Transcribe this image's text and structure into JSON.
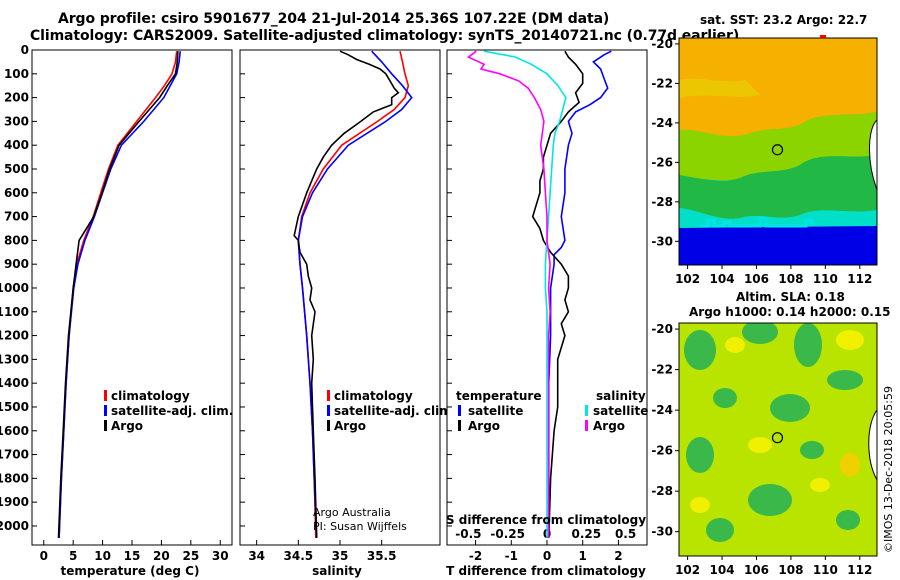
{
  "title": {
    "line1": "Argo profile: csiro 5901677_204 21-Jul-2014 25.36S 107.22E (DM data)",
    "line2": "Climatology: CARS2009. Satellite-adjusted climatology: synTS_20140721.nc (0.77d earlier)"
  },
  "panels_header": {
    "sst": "sat. SST: 23.2  Argo: 22.7",
    "sla_line1": "Altim. SLA: 0.18",
    "sla_line2": "Argo h1000: 0.14 h2000: 0.15"
  },
  "credit": {
    "line1": "Argo Australia",
    "line2": "PI: Susan Wijffels",
    "stamp": "©IMOS 13-Dec-2018 20:05:59"
  },
  "colors": {
    "climatology": "#ff0000",
    "satellite": "#0000ff",
    "argo": "#000000",
    "sat_salinity": "#00e5e5",
    "argo_salinity": "#ff00ff"
  },
  "chart_data": [
    {
      "type": "line",
      "name": "temperature-profile",
      "xlabel": "temperature (deg C)",
      "ylabel": "",
      "xlim": [
        -2,
        32
      ],
      "ylim": [
        2080,
        0
      ],
      "xticks": [
        0,
        5,
        10,
        15,
        20,
        25,
        30
      ],
      "yticks": [
        0,
        100,
        200,
        300,
        400,
        500,
        600,
        700,
        800,
        900,
        1000,
        1100,
        1200,
        1300,
        1400,
        1500,
        1600,
        1700,
        1800,
        1900,
        2000
      ],
      "legend": [
        "climatology",
        "satellite-adj. clim.",
        "Argo"
      ],
      "series": [
        {
          "name": "climatology",
          "depth": [
            5,
            50,
            100,
            150,
            200,
            300,
            400,
            500,
            600,
            700,
            800,
            900,
            1000,
            1200,
            1400,
            1600,
            1800,
            2050
          ],
          "values": [
            22.6,
            22.4,
            21.8,
            20.5,
            19.0,
            15.8,
            12.6,
            11.0,
            9.7,
            8.4,
            6.8,
            5.6,
            5.0,
            4.3,
            3.8,
            3.4,
            3.0,
            2.6
          ]
        },
        {
          "name": "satellite-adj. clim.",
          "depth": [
            5,
            50,
            100,
            150,
            200,
            300,
            400,
            500,
            600,
            700,
            800,
            900,
            1000,
            1200,
            1400,
            1600,
            1800,
            2050
          ],
          "values": [
            23.2,
            23.0,
            22.6,
            21.5,
            20.4,
            17.0,
            13.2,
            11.4,
            10.0,
            8.6,
            7.0,
            5.8,
            5.1,
            4.3,
            3.8,
            3.4,
            3.0,
            2.6
          ]
        },
        {
          "name": "Argo",
          "depth": [
            5,
            50,
            100,
            150,
            200,
            300,
            400,
            500,
            600,
            700,
            800,
            900,
            1000,
            1200,
            1400,
            1600,
            1800,
            2050
          ],
          "values": [
            22.8,
            22.7,
            22.4,
            21.0,
            19.7,
            16.2,
            12.8,
            11.2,
            9.9,
            8.5,
            6.0,
            5.5,
            5.0,
            4.2,
            3.7,
            3.3,
            2.9,
            2.5
          ]
        }
      ]
    },
    {
      "type": "line",
      "name": "salinity-profile",
      "xlabel": "salinity",
      "xlim": [
        33.8,
        36.2
      ],
      "ylim": [
        2080,
        0
      ],
      "xticks": [
        34,
        34.5,
        35,
        35.5
      ],
      "legend": [
        "climatology",
        "satellite-adj. clim.",
        "Argo"
      ],
      "series": [
        {
          "name": "climatology",
          "depth": [
            5,
            50,
            100,
            150,
            200,
            250,
            300,
            400,
            500,
            600,
            700,
            800,
            900,
            1000,
            1200,
            1400,
            1600,
            1800,
            2050
          ],
          "values": [
            35.72,
            35.75,
            35.78,
            35.82,
            35.78,
            35.65,
            35.45,
            35.02,
            34.8,
            34.64,
            34.54,
            34.5,
            34.52,
            34.55,
            34.6,
            34.64,
            34.67,
            34.69,
            34.71
          ]
        },
        {
          "name": "satellite-adj. clim.",
          "depth": [
            5,
            50,
            100,
            150,
            200,
            250,
            300,
            400,
            500,
            600,
            700,
            800,
            900,
            1000,
            1200,
            1400,
            1600,
            1800,
            2050
          ],
          "values": [
            35.38,
            35.5,
            35.62,
            35.75,
            35.86,
            35.74,
            35.55,
            35.1,
            34.85,
            34.67,
            34.55,
            34.5,
            34.52,
            34.55,
            34.6,
            34.64,
            34.67,
            34.69,
            34.72
          ]
        },
        {
          "name": "Argo",
          "depth": [
            5,
            20,
            40,
            60,
            80,
            100,
            130,
            160,
            180,
            200,
            230,
            260,
            300,
            350,
            400,
            450,
            500,
            600,
            700,
            780,
            800,
            850,
            900,
            950,
            1000,
            1050,
            1100,
            1200,
            1300,
            1400,
            1600,
            1800,
            2050
          ],
          "values": [
            35.0,
            35.1,
            35.2,
            35.35,
            35.48,
            35.55,
            35.6,
            35.65,
            35.7,
            35.62,
            35.62,
            35.4,
            35.25,
            35.05,
            34.9,
            34.8,
            34.72,
            34.6,
            34.5,
            34.45,
            34.5,
            34.52,
            34.6,
            34.62,
            34.66,
            34.64,
            34.7,
            34.66,
            34.68,
            34.66,
            34.68,
            34.7,
            34.72
          ]
        }
      ]
    },
    {
      "type": "line",
      "name": "difference-profile",
      "xlabel": "T difference from climatology",
      "xlabel_top": "S difference from climatology",
      "xlim": [
        -2.8,
        2.8
      ],
      "ylim": [
        2080,
        0
      ],
      "xticks": [
        -2,
        -1,
        0,
        1,
        2
      ],
      "xticks_s": [
        -0.5,
        -0.25,
        0,
        0.25,
        0.5
      ],
      "legend_left_title": "temperature",
      "legend_right_title": "salinity",
      "legend_left": [
        "satellite",
        "Argo"
      ],
      "legend_right": [
        "satellite",
        "Argo"
      ],
      "series": [
        {
          "name": "T satellite",
          "depth": [
            5,
            20,
            50,
            80,
            120,
            160,
            200,
            230,
            260,
            300,
            350,
            400,
            500,
            600,
            700,
            800,
            830,
            860,
            900,
            1000,
            1200,
            1400,
            1600,
            1800,
            2050
          ],
          "values": [
            1.8,
            1.6,
            1.3,
            1.5,
            1.6,
            1.7,
            1.5,
            1.2,
            0.8,
            0.6,
            0.7,
            0.6,
            0.5,
            0.5,
            0.4,
            0.5,
            0.4,
            0.2,
            0.2,
            0.1,
            0.1,
            0.05,
            0.05,
            0.05,
            0.05
          ]
        },
        {
          "name": "T Argo",
          "depth": [
            5,
            30,
            60,
            100,
            140,
            180,
            220,
            260,
            300,
            350,
            400,
            450,
            500,
            550,
            600,
            650,
            700,
            750,
            800,
            850,
            900,
            950,
            1000,
            1050,
            1100,
            1150,
            1200,
            1300,
            1400,
            1500,
            1600,
            1800,
            2050
          ],
          "values": [
            0.5,
            0.6,
            0.8,
            1.0,
            1.0,
            0.8,
            0.9,
            0.6,
            0.4,
            0.1,
            0.0,
            -0.1,
            -0.1,
            -0.2,
            -0.2,
            -0.3,
            -0.4,
            -0.2,
            -0.1,
            0.1,
            0.4,
            0.6,
            0.6,
            0.5,
            0.6,
            0.4,
            0.5,
            0.3,
            0.3,
            0.3,
            0.2,
            0.1,
            0.05
          ]
        },
        {
          "name": "S satellite",
          "depth": [
            5,
            30,
            60,
            100,
            150,
            200,
            250,
            300,
            350,
            400,
            500,
            600,
            700,
            800,
            900,
            1000,
            1100,
            1200,
            1400,
            1600,
            1800,
            2050
          ],
          "values": [
            -0.4,
            -0.2,
            -0.1,
            0.0,
            0.07,
            0.12,
            0.1,
            0.08,
            0.05,
            0.04,
            0.03,
            0.02,
            0.01,
            0.0,
            -0.01,
            -0.01,
            0.0,
            0.0,
            0.0,
            0.0,
            0.0,
            0.0
          ]
        },
        {
          "name": "S Argo",
          "depth": [
            5,
            30,
            60,
            80,
            100,
            130,
            160,
            200,
            250,
            300,
            350,
            400,
            450,
            500,
            600,
            700,
            800,
            900,
            1000,
            1100,
            1200,
            1400,
            1600,
            1800,
            2050
          ],
          "values": [
            -0.45,
            -0.5,
            -0.4,
            -0.42,
            -0.3,
            -0.18,
            -0.12,
            -0.08,
            -0.04,
            -0.02,
            -0.03,
            -0.04,
            -0.03,
            -0.02,
            -0.01,
            0.0,
            0.0,
            0.02,
            0.01,
            0.02,
            0.01,
            0.01,
            0.01,
            0.01,
            0.01
          ]
        }
      ]
    },
    {
      "type": "heatmap",
      "name": "sst-map",
      "title": "sat. SST: 23.2  Argo: 22.7",
      "xlim": [
        101.5,
        113
      ],
      "ylim": [
        -31.2,
        -19.7
      ],
      "xticks": [
        102,
        104,
        106,
        108,
        110,
        112
      ],
      "yticks": [
        -20,
        -22,
        -24,
        -26,
        -28,
        -30
      ],
      "marker": [
        107.22,
        -25.36
      ]
    },
    {
      "type": "heatmap",
      "name": "sla-map",
      "title": "Altim. SLA: 0.18",
      "xlim": [
        101.5,
        113
      ],
      "ylim": [
        -31.2,
        -19.7
      ],
      "xticks": [
        102,
        104,
        106,
        108,
        110,
        112
      ],
      "yticks": [
        -20,
        -22,
        -24,
        -26,
        -28,
        -30
      ],
      "marker": [
        107.22,
        -25.36
      ]
    }
  ]
}
